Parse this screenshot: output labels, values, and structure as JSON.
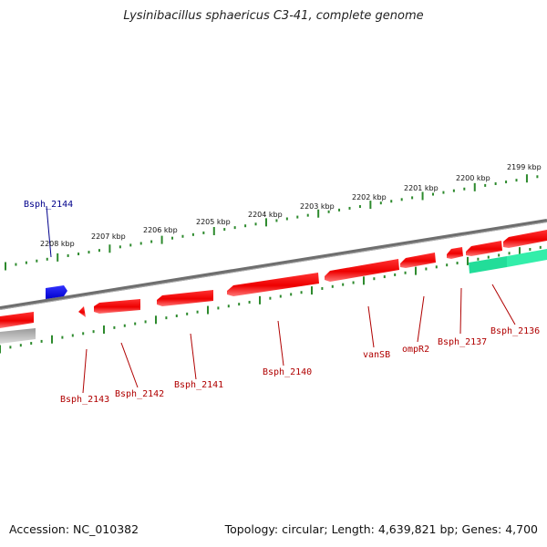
{
  "title": "Lysinibacillus sphaericus C3-41, complete genome",
  "accession": "Accession: NC_010382",
  "topology": "Topology: circular; Length: 4,639,821 bp; Genes: 4,700",
  "colors": {
    "forward_gene": "#0000ee",
    "reverse_gene": "#ee0000",
    "reverse_gene_light": "#ff6666",
    "rna_feature": "#22dd99",
    "pseudo_feature": "#bbbbbb",
    "backbone": "#777777",
    "ruler": "#2d8a2d",
    "forward_label": "#00008b",
    "reverse_label": "#b00000"
  },
  "ruler_labels": [
    {
      "text": "2208 kbp"
    },
    {
      "text": "2207 kbp"
    },
    {
      "text": "2206 kbp"
    },
    {
      "text": "2205 kbp"
    },
    {
      "text": "2204 kbp"
    },
    {
      "text": "2203 kbp"
    },
    {
      "text": "2202 kbp"
    },
    {
      "text": "2201 kbp"
    },
    {
      "text": "2200 kbp"
    },
    {
      "text": "2199 kbp"
    }
  ],
  "gene_labels": [
    {
      "text": "Bsph_2144",
      "strand": "forward"
    },
    {
      "text": "Bsph_2143",
      "strand": "reverse"
    },
    {
      "text": "Bsph_2142",
      "strand": "reverse"
    },
    {
      "text": "Bsph_2141",
      "strand": "reverse"
    },
    {
      "text": "Bsph_2140",
      "strand": "reverse"
    },
    {
      "text": "vanSB",
      "strand": "reverse"
    },
    {
      "text": "ompR2",
      "strand": "reverse"
    },
    {
      "text": "Bsph_2137",
      "strand": "reverse"
    },
    {
      "text": "Bsph_2136",
      "strand": "reverse"
    }
  ]
}
